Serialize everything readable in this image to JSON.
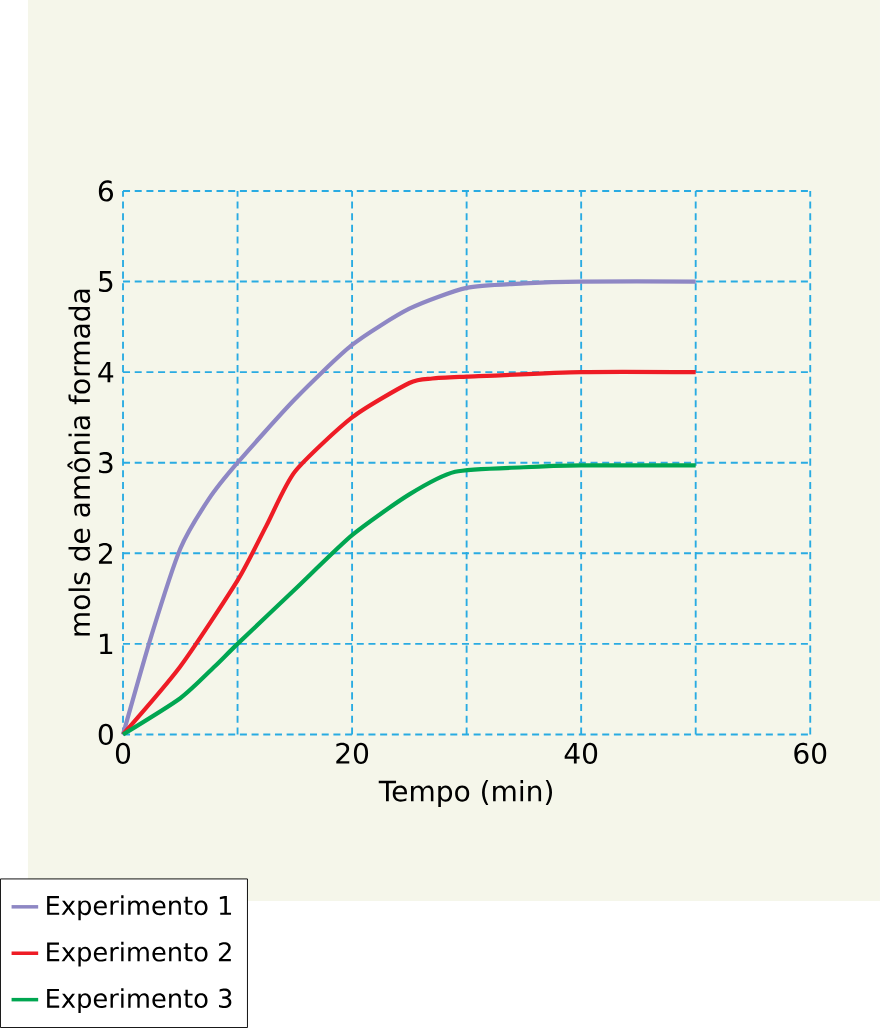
{
  "chart_data": {
    "type": "line",
    "xlabel": "Tempo (min)",
    "ylabel": "mols de amônia formada",
    "xlim": [
      0,
      60
    ],
    "ylim": [
      0,
      6
    ],
    "xticks": [
      0,
      20,
      40,
      60
    ],
    "yticks": [
      0,
      1,
      2,
      3,
      4,
      5,
      6
    ],
    "grid": true,
    "legend": "bottom left",
    "line_style": "solid",
    "marker": "none",
    "series": [
      {
        "name": "Experimento 1",
        "color": "#8e87c4",
        "x": [
          0,
          2.5,
          5,
          7.5,
          10,
          15,
          20,
          25,
          30,
          35,
          40,
          50
        ],
        "values": [
          0,
          1.1,
          2.05,
          2.6,
          3.0,
          3.7,
          4.3,
          4.7,
          4.93,
          4.98,
          5.0,
          5.0
        ]
      },
      {
        "name": "Experimento 2",
        "color": "#ee1c25",
        "x": [
          0,
          5,
          10,
          12.5,
          15,
          20,
          25,
          27,
          30,
          40,
          50
        ],
        "values": [
          0,
          0.75,
          1.7,
          2.3,
          2.9,
          3.5,
          3.88,
          3.93,
          3.95,
          4.0,
          4.0
        ]
      },
      {
        "name": "Experimento 3",
        "color": "#00a651",
        "x": [
          0,
          5,
          8,
          10,
          15,
          20,
          25,
          29,
          35,
          40,
          50
        ],
        "values": [
          0,
          0.4,
          0.75,
          1.0,
          1.6,
          2.2,
          2.65,
          2.9,
          2.95,
          2.97,
          2.97
        ]
      }
    ]
  }
}
